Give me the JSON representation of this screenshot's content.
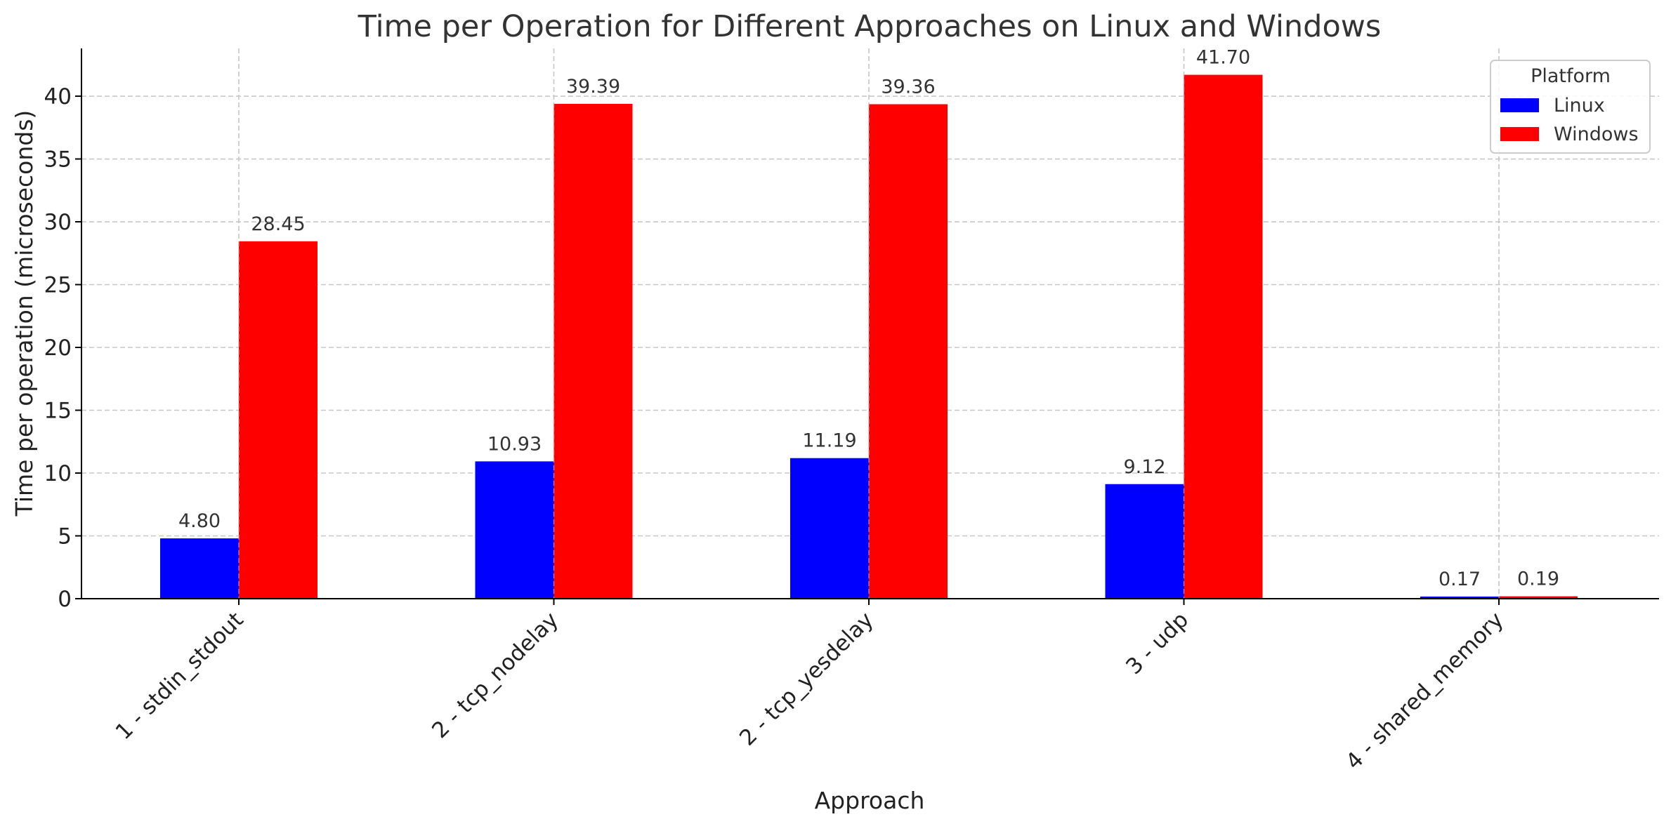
{
  "chart_data": {
    "type": "bar",
    "title": "Time per Operation for Different Approaches on Linux and Windows",
    "xlabel": "Approach",
    "ylabel": "Time per operation (microseconds)",
    "ylim": [
      0,
      43.8
    ],
    "yticks": [
      0,
      5,
      10,
      15,
      20,
      25,
      30,
      35,
      40
    ],
    "grid": true,
    "legend": {
      "title": "Platform",
      "position": "top-right"
    },
    "categories": [
      "1 - stdin_stdout",
      "2 - tcp_nodelay",
      "2 - tcp_yesdelay",
      "3 - udp",
      "4 - shared_memory"
    ],
    "series": [
      {
        "name": "Linux",
        "color": "#0000ff",
        "values": [
          4.8,
          10.93,
          11.19,
          9.12,
          0.17
        ],
        "labels": [
          "4.80",
          "10.93",
          "11.19",
          "9.12",
          "0.17"
        ]
      },
      {
        "name": "Windows",
        "color": "#ff0000",
        "values": [
          28.45,
          39.39,
          39.36,
          41.7,
          0.19
        ],
        "labels": [
          "28.45",
          "39.39",
          "39.36",
          "41.70",
          "0.19"
        ]
      }
    ]
  }
}
